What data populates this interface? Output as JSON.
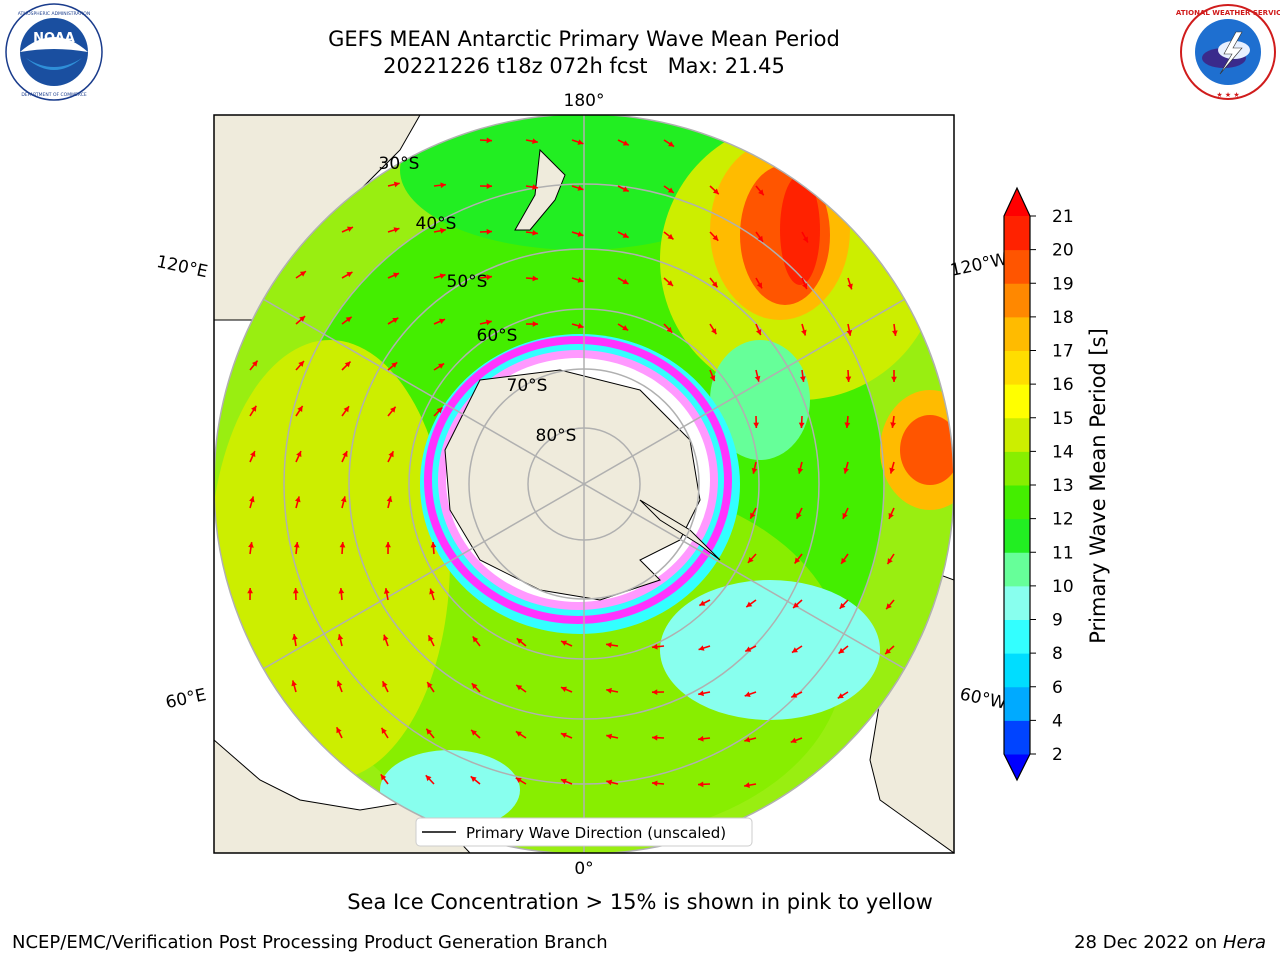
{
  "title": {
    "line1": "GEFS MEAN Antarctic Primary Wave Mean Period",
    "line2": "20221226 t18z 072h fcst   Max: 21.45"
  },
  "logos": {
    "left": {
      "icon": "noaa-logo",
      "text": "NOAA"
    },
    "right": {
      "icon": "nws-logo",
      "text": "NATIONAL WEATHER SERVICE"
    }
  },
  "map": {
    "projection": "south-polar-stereographic",
    "longitude_labels": {
      "top": "180°",
      "bottom": "0°",
      "upper_left": "120°E",
      "upper_right": "120°W",
      "lower_left": "60°E",
      "lower_right": "60°W"
    },
    "latitude_labels": [
      "30°S",
      "40°S",
      "50°S",
      "60°S",
      "70°S",
      "80°S"
    ],
    "legend_label": "Primary Wave Direction (unscaled)",
    "arrow_color": "#ff0000",
    "land_color": "#efebdc",
    "ice_colors": [
      "#ff33ff",
      "#ff99ff",
      "#ffccaa",
      "#ffffff"
    ]
  },
  "colorbar": {
    "label": "Primary Wave Mean Period [s]",
    "ticks": [
      "2",
      "4",
      "6",
      "8",
      "9",
      "10",
      "11",
      "12",
      "13",
      "14",
      "15",
      "16",
      "17",
      "18",
      "19",
      "20",
      "21"
    ],
    "colors": [
      "#0044ff",
      "#00aaff",
      "#00ddff",
      "#33ffff",
      "#88ffee",
      "#66ff99",
      "#22ee22",
      "#44ee00",
      "#88ee00",
      "#ccee00",
      "#ffff00",
      "#ffdd00",
      "#ffbb00",
      "#ff8800",
      "#ff5500",
      "#ff2200"
    ],
    "min_ext_color": "#0000ff",
    "max_ext_color": "#ff0000",
    "range": [
      2,
      21
    ]
  },
  "captions": {
    "ice": "Sea Ice Concentration > 15% is shown in pink to yellow",
    "footer_left": "NCEP/EMC/Verification Post Processing Product Generation Branch",
    "footer_right_date": "28 Dec 2022 on ",
    "footer_right_host": "Hera"
  }
}
